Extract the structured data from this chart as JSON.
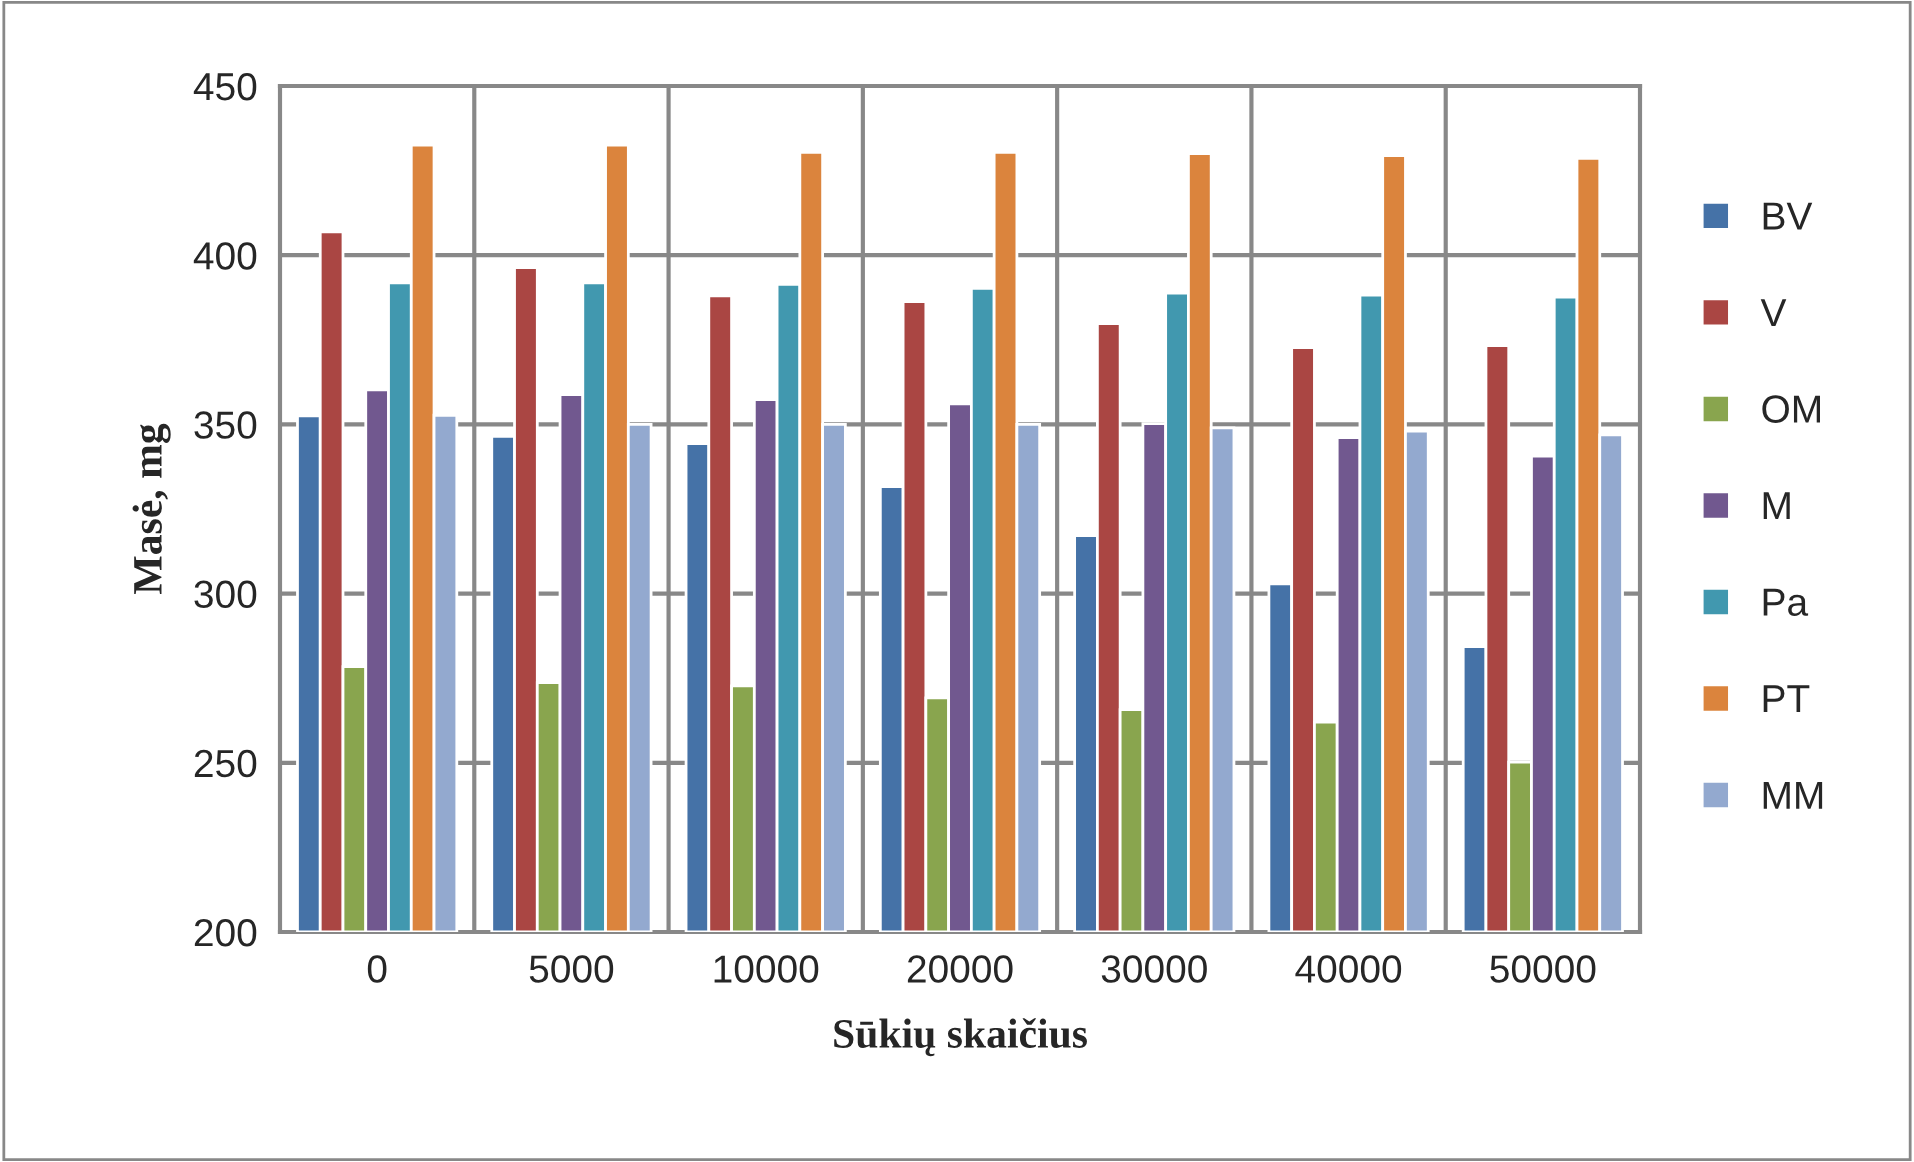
{
  "chart_data": {
    "type": "bar",
    "xlabel": "Sūkių skaičius",
    "ylabel": "Masė, mg",
    "categories": [
      "0",
      "5000",
      "10000",
      "20000",
      "30000",
      "40000",
      "50000"
    ],
    "series": [
      {
        "name": "BV",
        "color": "#4572a7",
        "values": [
          352.5,
          346.5,
          344.3,
          331.6,
          317.1,
          302.9,
          284.3
        ]
      },
      {
        "name": "V",
        "color": "#aa4643",
        "values": [
          406.9,
          396.3,
          388,
          386.3,
          379.8,
          372.7,
          373.3
        ]
      },
      {
        "name": "OM",
        "color": "#89a54e",
        "values": [
          278.4,
          273.7,
          272.7,
          269.2,
          265.7,
          262,
          250.2
        ]
      },
      {
        "name": "M",
        "color": "#71588f",
        "values": [
          360.2,
          358.8,
          357.3,
          356.1,
          350.2,
          346.1,
          340.6
        ]
      },
      {
        "name": "Pa",
        "color": "#4198af",
        "values": [
          391.8,
          391.8,
          391.4,
          390.2,
          388.8,
          388.2,
          387.6
        ]
      },
      {
        "name": "PT",
        "color": "#db843d",
        "values": [
          432.5,
          432.5,
          430.4,
          430.4,
          430,
          429.4,
          428.6
        ]
      },
      {
        "name": "MM",
        "color": "#93a9cf",
        "values": [
          352.7,
          350,
          350,
          350,
          349,
          348,
          346.9
        ]
      }
    ],
    "ylim": [
      200,
      450
    ],
    "yticks": [
      200,
      250,
      300,
      350,
      400,
      450
    ],
    "grid": true,
    "legend": "right"
  }
}
